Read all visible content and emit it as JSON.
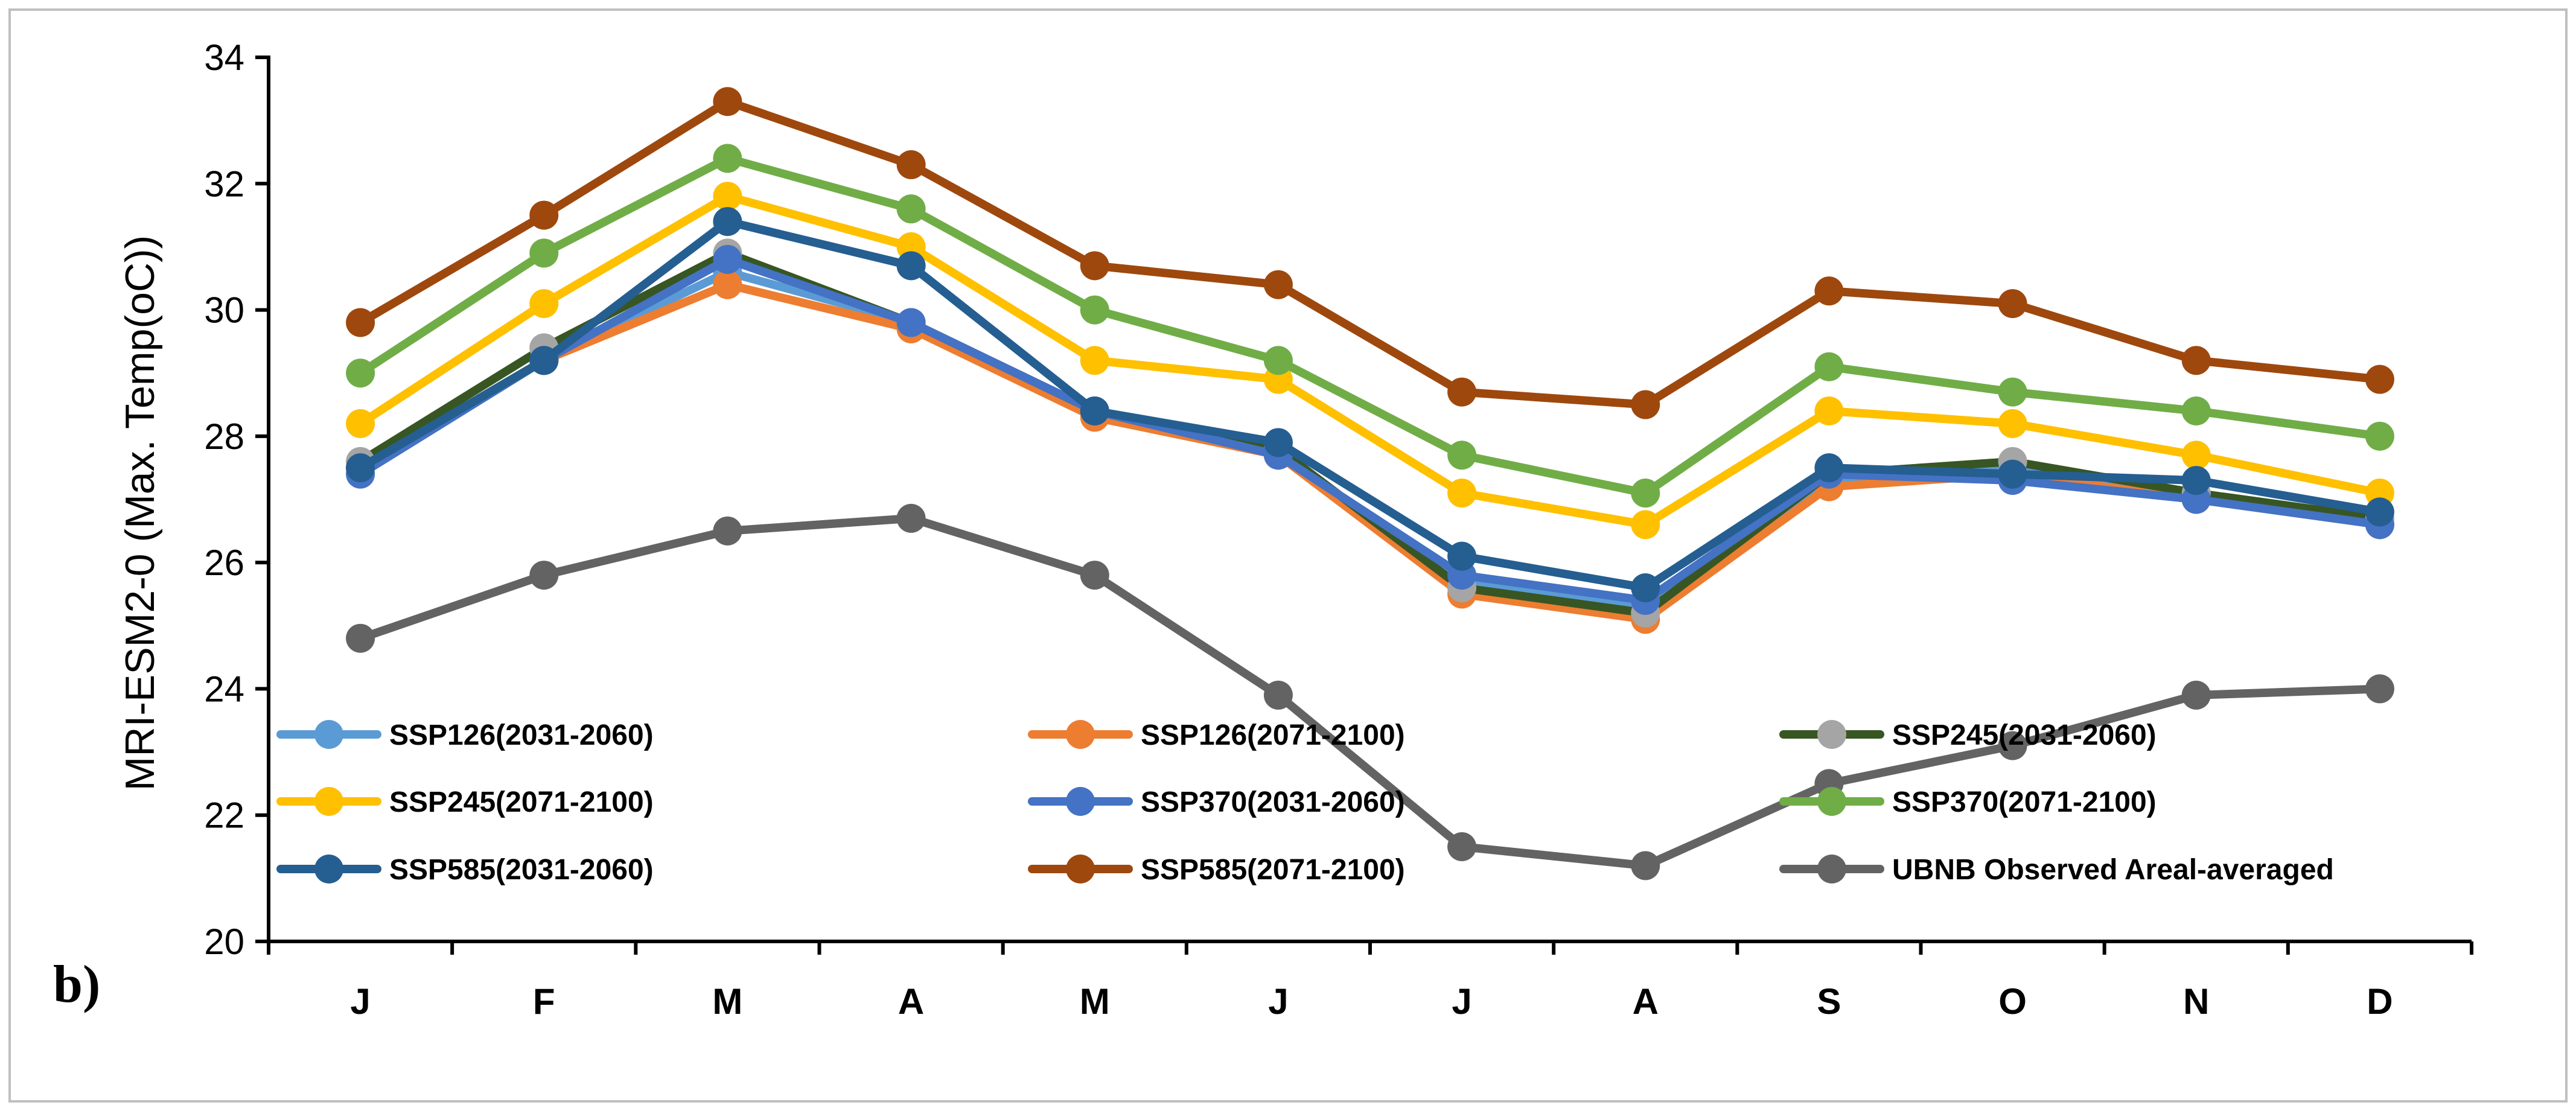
{
  "chart_data": {
    "type": "line",
    "panel_label": "b)",
    "title": "",
    "xlabel": "",
    "ylabel": "MRI-ESM2-0 (Max. Temp(oC))",
    "ylim": [
      20,
      34
    ],
    "yticks": [
      "20",
      "22",
      "24",
      "26",
      "28",
      "30",
      "32",
      "34"
    ],
    "categories": [
      "J",
      "F",
      "M",
      "A",
      "M",
      "J",
      "J",
      "A",
      "S",
      "O",
      "N",
      "D"
    ],
    "grid": false,
    "legend_position": "bottom-inside",
    "series": [
      {
        "name": "SSP126(2031-2060)",
        "color": "#5b9bd5",
        "values": [
          27.5,
          29.2,
          30.6,
          29.8,
          28.4,
          27.7,
          25.7,
          25.3,
          27.3,
          27.5,
          27.0,
          26.6
        ]
      },
      {
        "name": "SSP126(2071-2100)",
        "color": "#ed7d31",
        "values": [
          27.5,
          29.2,
          30.4,
          29.7,
          28.3,
          27.7,
          25.5,
          25.1,
          27.2,
          27.4,
          27.0,
          26.6
        ]
      },
      {
        "name": "SSP245(2031-2060)",
        "color": "#375623",
        "marker_color": "#a5a5a5",
        "values": [
          27.6,
          29.4,
          30.9,
          29.8,
          28.4,
          27.8,
          25.6,
          25.2,
          27.4,
          27.6,
          27.1,
          26.7
        ]
      },
      {
        "name": "SSP245(2071-2100)",
        "color": "#ffc000",
        "values": [
          28.2,
          30.1,
          31.8,
          31.0,
          29.2,
          28.9,
          27.1,
          26.6,
          28.4,
          28.2,
          27.7,
          27.1
        ]
      },
      {
        "name": "SSP370(2031-2060)",
        "color": "#4472c4",
        "values": [
          27.4,
          29.2,
          30.8,
          29.8,
          28.4,
          27.7,
          25.8,
          25.4,
          27.4,
          27.3,
          27.0,
          26.6
        ]
      },
      {
        "name": "SSP370(2071-2100)",
        "color": "#70ad47",
        "values": [
          29.0,
          30.9,
          32.4,
          31.6,
          30.0,
          29.2,
          27.7,
          27.1,
          29.1,
          28.7,
          28.4,
          28.0
        ]
      },
      {
        "name": "SSP585(2031-2060)",
        "color": "#255e91",
        "values": [
          27.5,
          29.2,
          31.4,
          30.7,
          28.4,
          27.9,
          26.1,
          25.6,
          27.5,
          27.4,
          27.3,
          26.8
        ]
      },
      {
        "name": "SSP585(2071-2100)",
        "color": "#9e480e",
        "values": [
          29.8,
          31.5,
          33.3,
          32.3,
          30.7,
          30.4,
          28.7,
          28.5,
          30.3,
          30.1,
          29.2,
          28.9
        ]
      },
      {
        "name": "UBNB Observed Areal-averaged",
        "color": "#636363",
        "values": [
          24.8,
          25.8,
          26.5,
          26.7,
          25.8,
          23.9,
          21.5,
          21.2,
          22.5,
          23.1,
          23.9,
          24.0
        ]
      }
    ]
  }
}
